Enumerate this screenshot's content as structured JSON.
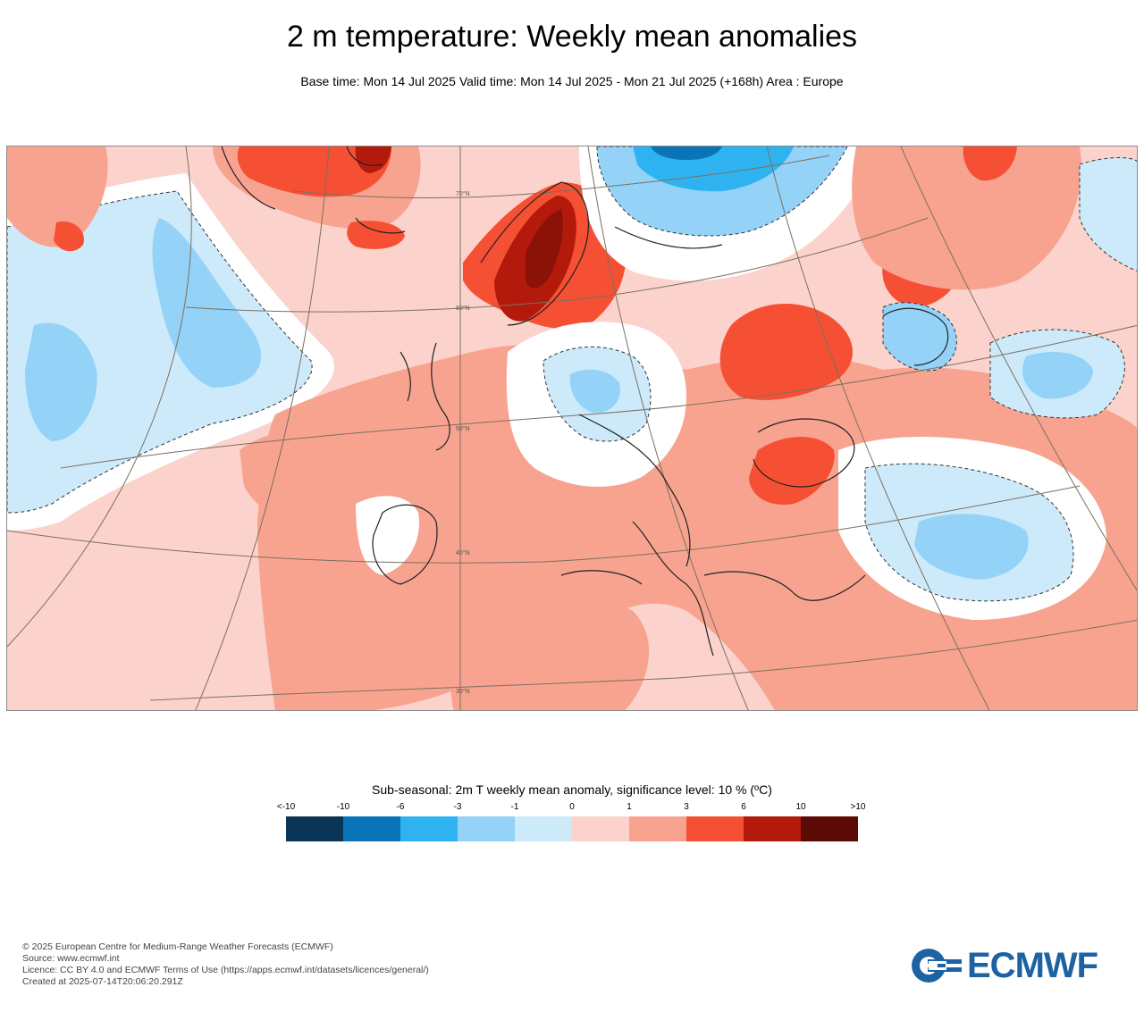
{
  "header": {
    "title": "2 m temperature: Weekly mean anomalies",
    "subtitle": "Base time: Mon 14 Jul 2025 Valid time: Mon 14 Jul 2025 - Mon 21 Jul 2025 (+168h) Area : Europe"
  },
  "map": {
    "area": "Europe",
    "lat_labels": [
      "70°N",
      "60°N",
      "50°N",
      "40°N",
      "30°N"
    ]
  },
  "legend": {
    "title": "Sub-seasonal: 2m T weekly mean anomaly, significance level: 10 % (ºC)",
    "ticks": [
      "<-10",
      "-10",
      "-6",
      "-3",
      "-1",
      "0",
      "1",
      "3",
      "6",
      "10",
      ">10"
    ],
    "colors": [
      "#0b3557",
      "#0a74b8",
      "#2fb3f0",
      "#94d2f7",
      "#cdeafb",
      "#fcd3cc",
      "#f7a390",
      "#f55034",
      "#b31a0c",
      "#5c0a05"
    ]
  },
  "footer": {
    "lines": [
      "© 2025 European Centre for Medium-Range Weather Forecasts (ECMWF)",
      "Source: www.ecmwf.int",
      "Licence: CC BY 4.0 and ECMWF Terms of Use (https://apps.ecmwf.int/datasets/licences/general/)",
      "Created at 2025-07-14T20:06:20.291Z"
    ]
  },
  "logo": {
    "text": "ECMWF",
    "color": "#1d62a3"
  }
}
